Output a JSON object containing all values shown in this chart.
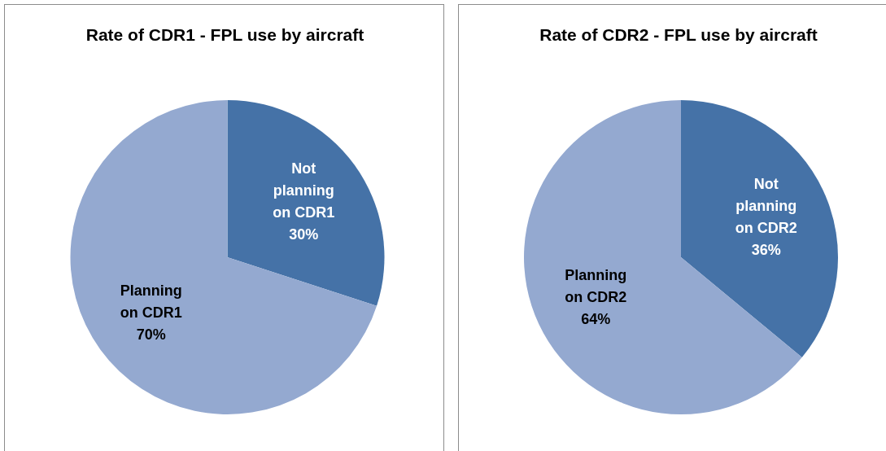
{
  "chart_data": [
    {
      "type": "pie",
      "title": "Rate of CDR1 - FPL use by aircraft",
      "categories": [
        "Not planning on CDR1",
        "Planning on CDR1"
      ],
      "values": [
        30,
        70
      ],
      "colors": [
        "#4572a7",
        "#94a9d0"
      ],
      "value_labels": [
        "30%",
        "70%"
      ]
    },
    {
      "type": "pie",
      "title": "Rate of CDR2 - FPL use by aircraft",
      "categories": [
        "Not planning on CDR2",
        "Planning on CDR2"
      ],
      "values": [
        36,
        64
      ],
      "colors": [
        "#4572a7",
        "#94a9d0"
      ],
      "value_labels": [
        "36%",
        "64%"
      ]
    }
  ]
}
